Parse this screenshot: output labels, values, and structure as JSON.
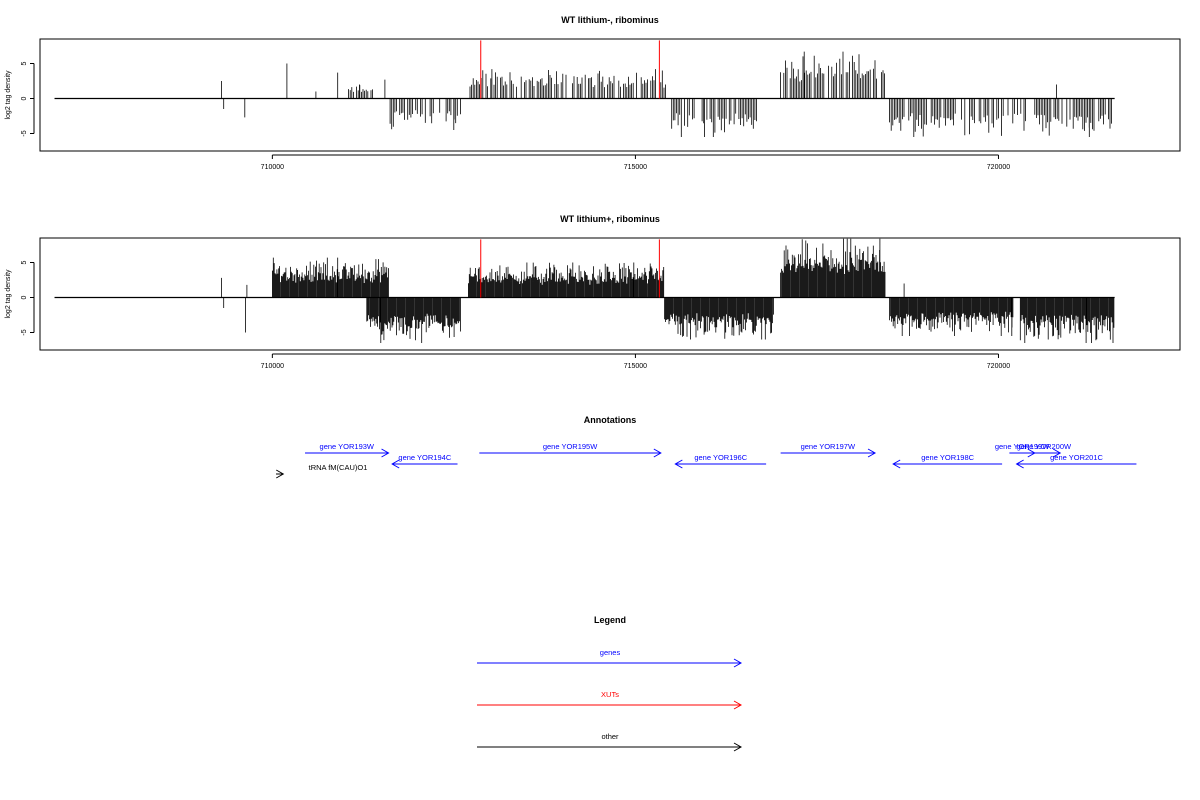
{
  "chart_data": [
    {
      "type": "bar",
      "title": "WT lithium-, ribominus",
      "ylabel": "log2 tag density",
      "xlim": [
        706800,
        722500
      ],
      "ylim": [
        -7.5,
        8.5
      ],
      "yticks": [
        -5,
        0,
        5
      ],
      "xticks": [
        710000,
        715000,
        720000
      ],
      "xtick_labels": [
        "710000",
        "715000",
        "720000"
      ],
      "baseline_range": [
        707000,
        721600
      ],
      "xut_lines": [
        {
          "x": 712870,
          "y": 8.3
        },
        {
          "x": 715330,
          "y": 8.3
        }
      ],
      "forward_blocks": [
        {
          "start": 709300,
          "end": 709320,
          "max": 2.5
        },
        {
          "start": 710200,
          "end": 710220,
          "max": 5.0
        },
        {
          "start": 710600,
          "end": 710620,
          "max": 1.0
        },
        {
          "start": 710900,
          "end": 710920,
          "max": 3.7
        },
        {
          "start": 711050,
          "end": 711400,
          "max": 2.0
        },
        {
          "start": 711550,
          "end": 711570,
          "max": 2.7
        },
        {
          "start": 712700,
          "end": 715300,
          "max": 4.2
        },
        {
          "start": 715350,
          "end": 715420,
          "max": 4.0
        },
        {
          "start": 717000,
          "end": 718450,
          "max": 6.7
        },
        {
          "start": 720800,
          "end": 720820,
          "max": 2.0
        }
      ],
      "reverse_blocks": [
        {
          "start": 709330,
          "end": 709350,
          "min": -1.5
        },
        {
          "start": 709620,
          "end": 709650,
          "min": -2.7
        },
        {
          "start": 711600,
          "end": 712600,
          "min": -4.5
        },
        {
          "start": 715500,
          "end": 716700,
          "min": -5.5
        },
        {
          "start": 718500,
          "end": 720400,
          "min": -5.5
        },
        {
          "start": 720500,
          "end": 721600,
          "min": -5.5
        }
      ]
    },
    {
      "type": "bar",
      "title": "WT lithium+, ribominus",
      "ylabel": "log2 tag density",
      "xlim": [
        706800,
        722500
      ],
      "ylim": [
        -7.5,
        8.5
      ],
      "yticks": [
        -5,
        0,
        5
      ],
      "xticks": [
        710000,
        715000,
        720000
      ],
      "xtick_labels": [
        "710000",
        "715000",
        "720000"
      ],
      "baseline_range": [
        707000,
        721600
      ],
      "xut_lines": [
        {
          "x": 712870,
          "y": 8.3
        },
        {
          "x": 715330,
          "y": 8.3
        }
      ],
      "forward_blocks": [
        {
          "start": 709300,
          "end": 709320,
          "max": 2.8
        },
        {
          "start": 709650,
          "end": 709670,
          "max": 1.8
        },
        {
          "start": 710000,
          "end": 711600,
          "max": 5.7
        },
        {
          "start": 712700,
          "end": 715400,
          "max": 5.0
        },
        {
          "start": 717000,
          "end": 718450,
          "max": 8.4
        },
        {
          "start": 718700,
          "end": 718720,
          "max": 2.0
        }
      ],
      "reverse_blocks": [
        {
          "start": 709330,
          "end": 709350,
          "min": -1.5
        },
        {
          "start": 709630,
          "end": 709660,
          "min": -5.0
        },
        {
          "start": 711300,
          "end": 712600,
          "min": -6.5
        },
        {
          "start": 715400,
          "end": 716900,
          "min": -6.0
        },
        {
          "start": 718500,
          "end": 720200,
          "min": -5.5
        },
        {
          "start": 720300,
          "end": 721600,
          "min": -6.5
        }
      ]
    }
  ],
  "annotations": {
    "title": "Annotations",
    "features": [
      {
        "label": "gene YOR193W",
        "start": 710450,
        "end": 711600,
        "strand": "+",
        "row": 0,
        "color": "#0000ff"
      },
      {
        "label": "gene YOR194C",
        "start": 711650,
        "end": 712550,
        "strand": "-",
        "row": 1,
        "color": "#0000ff"
      },
      {
        "label": "gene YOR195W",
        "start": 712850,
        "end": 715350,
        "strand": "+",
        "row": 0,
        "color": "#0000ff"
      },
      {
        "label": "gene YOR196C",
        "start": 715550,
        "end": 716800,
        "strand": "-",
        "row": 1,
        "color": "#0000ff"
      },
      {
        "label": "gene YOR197W",
        "start": 717000,
        "end": 718300,
        "strand": "+",
        "row": 0,
        "color": "#0000ff"
      },
      {
        "label": "gene YOR198C",
        "start": 718550,
        "end": 720050,
        "strand": "-",
        "row": 1,
        "color": "#0000ff"
      },
      {
        "label": "gene YOR199W",
        "start": 720150,
        "end": 720500,
        "strand": "+",
        "row": 0,
        "color": "#0000ff"
      },
      {
        "label": "gene YOR200W",
        "start": 720400,
        "end": 720850,
        "strand": "+",
        "row": 0,
        "color": "#0000ff"
      },
      {
        "label": "gene YOR201C",
        "start": 720250,
        "end": 721900,
        "strand": "-",
        "row": 1,
        "color": "#0000ff"
      },
      {
        "label": "tRNA fM(CAU)O1",
        "start": 710050,
        "end": 710150,
        "strand": "+",
        "row": 2,
        "color": "#000000"
      }
    ]
  },
  "legend": {
    "title": "Legend",
    "items": [
      {
        "label": "genes",
        "color": "#0000ff"
      },
      {
        "label": "XUTs",
        "color": "#ff0000"
      },
      {
        "label": "other",
        "color": "#000000"
      }
    ]
  }
}
